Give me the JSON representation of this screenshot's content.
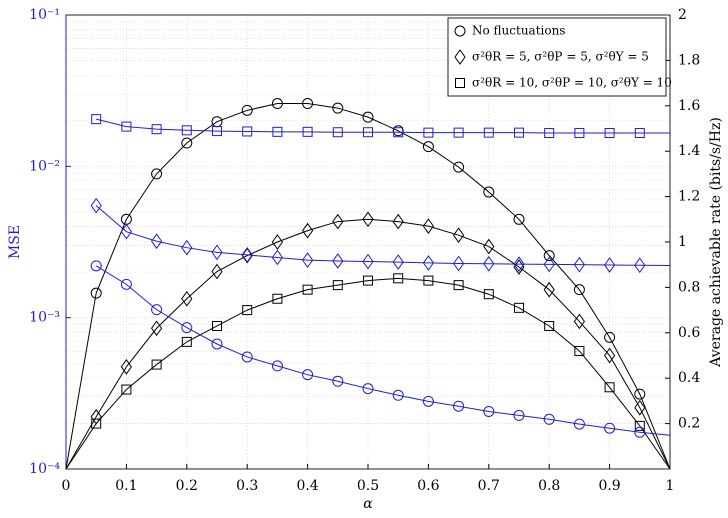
{
  "chart_data": {
    "type": "line",
    "x_label": "α",
    "y_label": "MSE",
    "y2_label": "Average achievable rate (bits/s/Hz)",
    "x": [
      0,
      0.05,
      0.1,
      0.15,
      0.2,
      0.25,
      0.3,
      0.35,
      0.4,
      0.45,
      0.5,
      0.55,
      0.6,
      0.65,
      0.7,
      0.75,
      0.8,
      0.85,
      0.9,
      0.95,
      1
    ],
    "xlim": [
      0,
      1
    ],
    "xticks": [
      0,
      0.1,
      0.2,
      0.3,
      0.4,
      0.5,
      0.6,
      0.7,
      0.8,
      0.9,
      1
    ],
    "ylim": [
      0.0001,
      0.1
    ],
    "y_scale": "log",
    "yticks": [
      {
        "value": 0.0001,
        "label": "10⁻⁴"
      },
      {
        "value": 0.001,
        "label": "10⁻³"
      },
      {
        "value": 0.01,
        "label": "10⁻²"
      },
      {
        "value": 0.1,
        "label": "10⁻¹"
      }
    ],
    "y2lim": [
      0,
      2
    ],
    "y2ticks": [
      0.2,
      0.4,
      0.6,
      0.8,
      1,
      1.2,
      1.4,
      1.6,
      1.8,
      2
    ],
    "grid": true,
    "y_axis_color": "#1f1fd0",
    "legend_position": "upper right",
    "legend": [
      {
        "label": "No fluctuations",
        "marker": "circle"
      },
      {
        "label": "σ²θR = 5, σ²θP = 5, σ²θY = 5",
        "marker": "diamond"
      },
      {
        "label": "σ²θR = 10, σ²θP = 10, σ²θY = 10",
        "marker": "square"
      }
    ],
    "series": [
      {
        "marker": "circle",
        "color": "#000000",
        "axis": "y2",
        "values": [
          0,
          0.775,
          1.1,
          1.3,
          1.436,
          1.53,
          1.58,
          1.61,
          1.61,
          1.59,
          1.55,
          1.49,
          1.42,
          1.33,
          1.22,
          1.1,
          0.94,
          0.79,
          0.58,
          0.33,
          0
        ]
      },
      {
        "marker": "diamond",
        "color": "#000000",
        "axis": "y2",
        "values": [
          0,
          0.23,
          0.45,
          0.62,
          0.75,
          0.87,
          0.94,
          1.0,
          1.05,
          1.09,
          1.1,
          1.09,
          1.07,
          1.03,
          0.98,
          0.89,
          0.79,
          0.65,
          0.5,
          0.27,
          0
        ]
      },
      {
        "marker": "square",
        "color": "#000000",
        "axis": "y2",
        "values": [
          0,
          0.2,
          0.35,
          0.46,
          0.56,
          0.63,
          0.7,
          0.75,
          0.79,
          0.81,
          0.83,
          0.84,
          0.83,
          0.81,
          0.77,
          0.71,
          0.63,
          0.52,
          0.36,
          0.19,
          0
        ]
      },
      {
        "marker": "circle",
        "color": "#1f1fd0",
        "axis": "y",
        "values": [
          null,
          0.0022,
          0.00166,
          0.00113,
          0.00086,
          0.00067,
          0.00055,
          0.00048,
          0.00042,
          0.00038,
          0.00034,
          0.000307,
          0.00028,
          0.00026,
          0.00024,
          0.000226,
          0.000213,
          0.000198,
          0.000186,
          0.000175,
          0.000167
        ]
      },
      {
        "marker": "diamond",
        "color": "#1f1fd0",
        "axis": "y",
        "values": [
          null,
          0.0055,
          0.0037,
          0.0032,
          0.0029,
          0.0027,
          0.0026,
          0.0025,
          0.0024,
          0.00237,
          0.00235,
          0.00233,
          0.0023,
          0.00228,
          0.00227,
          0.00226,
          0.00225,
          0.00224,
          0.00223,
          0.00222,
          0.00221
        ]
      },
      {
        "marker": "square",
        "color": "#1f1fd0",
        "axis": "y",
        "values": [
          null,
          0.0205,
          0.0183,
          0.0176,
          0.0173,
          0.0171,
          0.017,
          0.0169,
          0.0169,
          0.0168,
          0.0168,
          0.0168,
          0.0167,
          0.0167,
          0.0167,
          0.0167,
          0.0166,
          0.0166,
          0.0166,
          0.0166,
          0.0166
        ]
      }
    ]
  }
}
